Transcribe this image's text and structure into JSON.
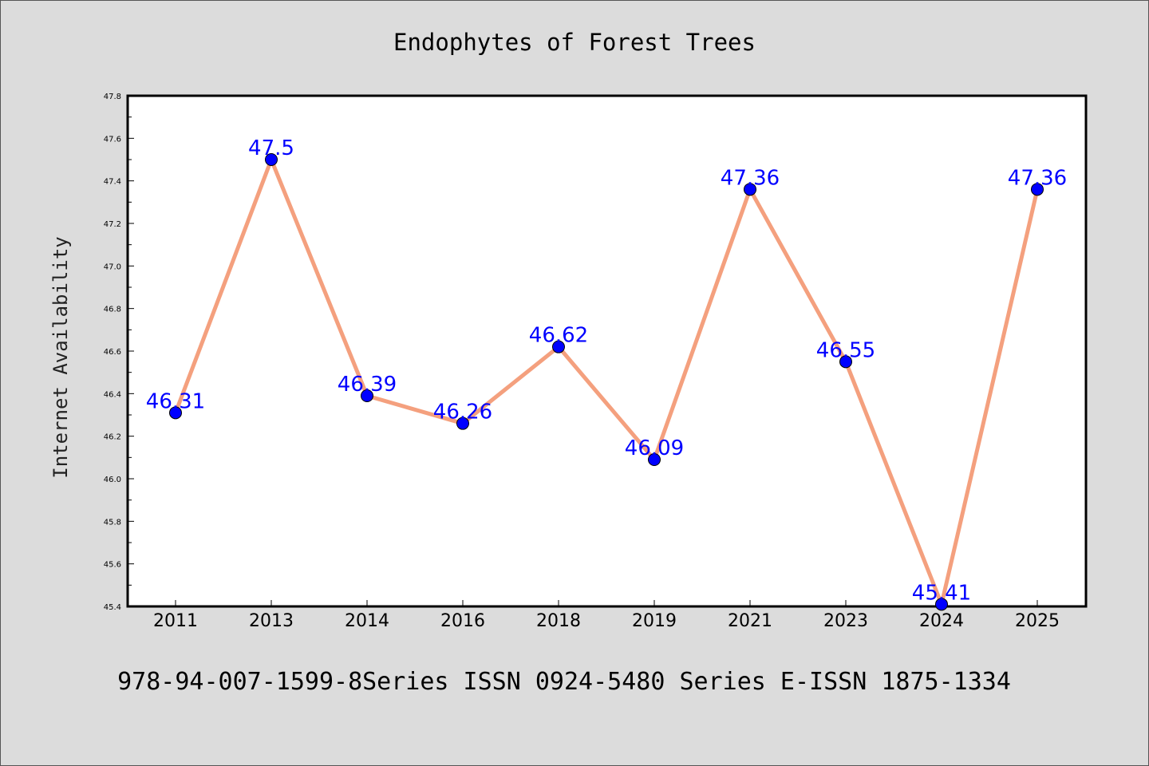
{
  "chart_data": {
    "type": "line",
    "title": "Endophytes of Forest Trees",
    "xlabel": "",
    "ylabel": "Internet Availability",
    "categories": [
      "2011",
      "2013",
      "2014",
      "2016",
      "2018",
      "2019",
      "2021",
      "2023",
      "2024",
      "2025"
    ],
    "series": [
      {
        "values": [
          46.31,
          47.5,
          46.39,
          46.26,
          46.62,
          46.09,
          47.36,
          46.55,
          45.41,
          47.36
        ]
      }
    ],
    "data_labels": [
      "46.31",
      "47.5",
      "46.39",
      "46.26",
      "46.62",
      "46.09",
      "47.36",
      "46.55",
      "45.41",
      "47.36"
    ],
    "ylim": [
      45.4,
      47.8
    ],
    "yticks": [
      "45.4",
      "45.6",
      "45.8",
      "46.0",
      "46.2",
      "46.4",
      "46.6",
      "46.8",
      "47.0",
      "47.2",
      "47.4",
      "47.6",
      "47.8"
    ],
    "grid": false,
    "legend": "none",
    "colors": {
      "line": "#f4a07e",
      "marker": "#0000ff",
      "label": "#0000ff",
      "background": "#dcdcdc",
      "plot_bg": "#ffffff"
    }
  },
  "footer": "978-94-007-1599-8Series ISSN 0924-5480 Series E-ISSN 1875-1334"
}
